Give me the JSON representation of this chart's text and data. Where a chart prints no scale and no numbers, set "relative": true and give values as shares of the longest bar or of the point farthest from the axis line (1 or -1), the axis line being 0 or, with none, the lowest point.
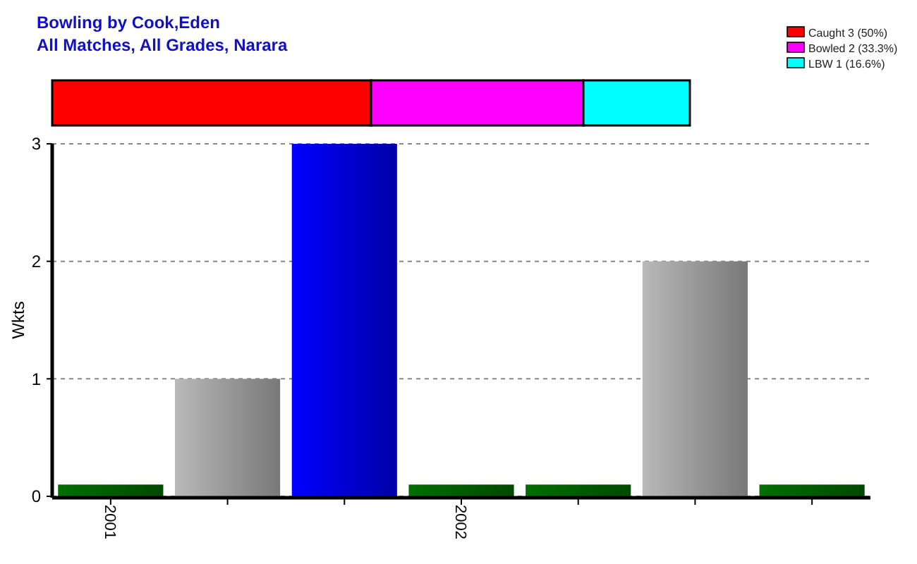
{
  "chart_data": [
    {
      "type": "bar",
      "orientation": "horizontal",
      "stacked": true,
      "relative": true,
      "title": "Bowling by Cook,Eden",
      "subtitle": "All Matches, All Grades, Narara",
      "categories": [
        null
      ],
      "series": [
        {
          "name": "Caught 3 (50%)",
          "color": "#ff0000",
          "values": [
            0.5
          ]
        },
        {
          "name": "Bowled 2 (33.3%)",
          "color": "#ff00ff",
          "values": [
            0.333
          ]
        },
        {
          "name": "LBW 1 (16.6%)",
          "color": "#00ffff",
          "values": [
            0.167
          ]
        }
      ],
      "legend": "top right"
    },
    {
      "type": "bar",
      "categories": [
        "2001",
        null,
        null,
        "2002",
        null,
        null,
        null
      ],
      "values": [
        0.1,
        1,
        3,
        0.1,
        0.1,
        2,
        0.1
      ],
      "colors": [
        "#005a00",
        "#959595",
        "#0000d0",
        "#005a00",
        "#005a00",
        "#959595",
        "#005a00"
      ],
      "ylabel": "Wkts",
      "ylim": [
        0,
        3
      ],
      "yticks": [
        0,
        1,
        2,
        3
      ],
      "grid": "y"
    }
  ]
}
